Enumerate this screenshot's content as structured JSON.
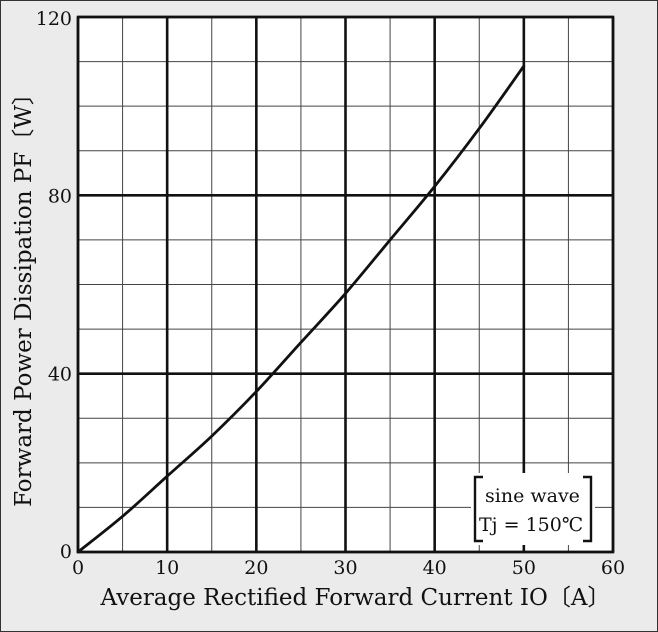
{
  "chart_data": {
    "type": "line",
    "xlabel": "Average Rectified Forward Current IO〔A〕",
    "ylabel": "Forward Power Dissipation PF〔W〕",
    "xlim": [
      0,
      60
    ],
    "ylim": [
      0,
      120
    ],
    "x_ticks": [
      0,
      10,
      20,
      30,
      40,
      50,
      60
    ],
    "y_ticks": [
      0,
      40,
      80,
      120
    ],
    "x_tick_labels": [
      "0",
      "10",
      "20",
      "30",
      "40",
      "50",
      "60"
    ],
    "y_tick_labels": [
      "0",
      "40",
      "80",
      "120"
    ],
    "grid": true,
    "series": [
      {
        "x": [
          0,
          5,
          10,
          15,
          20,
          25,
          30,
          35,
          40,
          45,
          50
        ],
        "y": [
          0,
          8,
          17,
          26,
          36,
          47,
          58,
          70,
          82,
          95,
          109
        ],
        "color": "#111111"
      }
    ],
    "annotation": {
      "lines": [
        "sine wave",
        "Tj = 150℃"
      ],
      "position": "bottom-right"
    }
  }
}
